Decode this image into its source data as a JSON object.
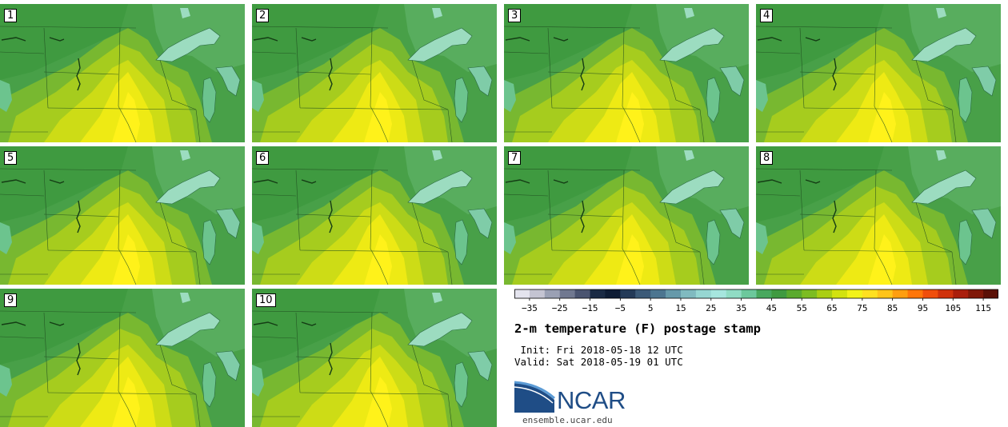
{
  "panels": [
    {
      "label": "1"
    },
    {
      "label": "2"
    },
    {
      "label": "3"
    },
    {
      "label": "4"
    },
    {
      "label": "5"
    },
    {
      "label": "6"
    },
    {
      "label": "7"
    },
    {
      "label": "8"
    },
    {
      "label": "9"
    },
    {
      "label": "10"
    }
  ],
  "colorbar": {
    "ticks": [
      "-35",
      "-25",
      "-15",
      "-5",
      "5",
      "15",
      "25",
      "35",
      "45",
      "55",
      "65",
      "75",
      "85",
      "95",
      "105",
      "115"
    ],
    "range": [
      -40,
      120
    ],
    "step": 5,
    "colors": [
      "#e4e4ee",
      "#c4c4d2",
      "#9aa0b4",
      "#707890",
      "#4a5470",
      "#1a2a44",
      "#0e1c34",
      "#243a58",
      "#3c5a78",
      "#4c7590",
      "#6699aa",
      "#80bac0",
      "#96d6d2",
      "#a6e6de",
      "#90dcc4",
      "#6cc89c",
      "#48a85e",
      "#3f9a40",
      "#5aaa2e",
      "#7cbc22",
      "#aace14",
      "#d2e210",
      "#f2f21a",
      "#ffe020",
      "#ffc41a",
      "#ff9e10",
      "#ff760a",
      "#f04e0c",
      "#d0320c",
      "#aa1e0c",
      "#801808",
      "#5a1006"
    ]
  },
  "title": "2-m temperature (F) postage stamp",
  "init": " Init: Fri 2018-05-18 12 UTC",
  "valid": "Valid: Sat 2018-05-19 01 UTC",
  "logo": {
    "text": "NCAR",
    "website": "ensemble.ucar.edu",
    "colors": {
      "blue": "#1f4d86",
      "light": "#5b9bd5"
    }
  },
  "map_colors": {
    "t45": "#6cc48e",
    "t50": "#58ad5e",
    "t55": "#48a048",
    "t60": "#78b830",
    "t65": "#a6cc1e",
    "t70": "#cddc16",
    "t75": "#eeea14",
    "t80": "#fff21a"
  }
}
